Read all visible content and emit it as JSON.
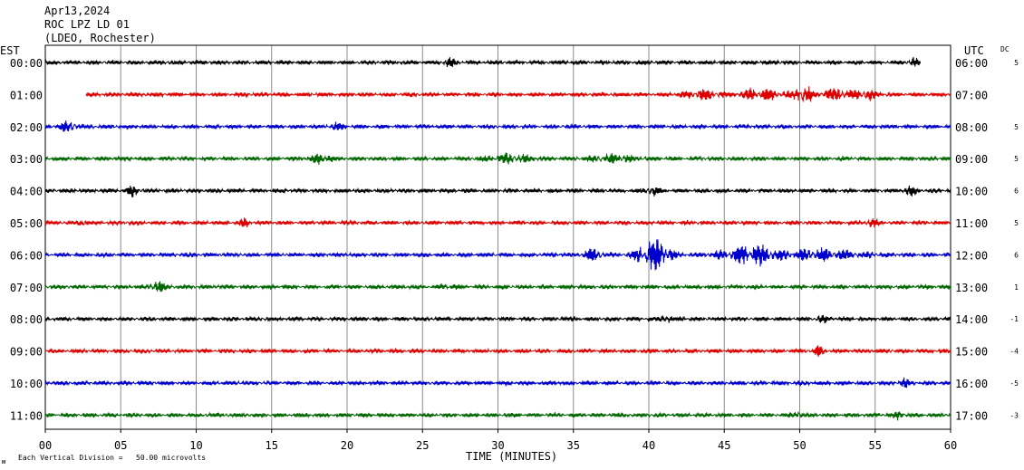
{
  "header": {
    "date": "Apr13,2024",
    "station": "ROC LPZ LD 01",
    "network": "(LDEO, Rochester)"
  },
  "axis_labels": {
    "left": "EST",
    "right": "UTC",
    "dc": "DC",
    "x": "TIME (MINUTES)"
  },
  "footer": {
    "mark": "ᴍ",
    "scale": "Each Vertical Division =   50.00 microvolts"
  },
  "colors": {
    "black": "#000000",
    "red": "#dd0000",
    "blue": "#0000cc",
    "green": "#006600",
    "grid": "#8c8c8c"
  },
  "chart_data": {
    "type": "line",
    "title": "Apr13,2024 ROC LPZ LD 01 (LDEO, Rochester)",
    "xlabel": "TIME (MINUTES)",
    "xlim": [
      0,
      60
    ],
    "x_ticks": [
      "00",
      "05",
      "10",
      "15",
      "20",
      "25",
      "30",
      "35",
      "40",
      "45",
      "50",
      "55",
      "60"
    ],
    "grid": true,
    "traces": [
      {
        "est": "00:00",
        "utc": "06:00",
        "dc": "5",
        "color": "black",
        "start": 0,
        "end": 58,
        "events": [
          [
            26.8,
            0.4,
            1.6
          ],
          [
            57.5,
            0.3,
            1.8
          ]
        ]
      },
      {
        "est": "01:00",
        "utc": "07:00",
        "dc": "",
        "color": "red",
        "start": 2.7,
        "end": 60,
        "events": [
          [
            43.5,
            1.2,
            1.8
          ],
          [
            47.5,
            1.5,
            2.2
          ],
          [
            50.2,
            0.5,
            4.2
          ],
          [
            52.5,
            1.5,
            2.0
          ],
          [
            54.5,
            0.5,
            2.0
          ]
        ]
      },
      {
        "est": "02:00",
        "utc": "08:00",
        "dc": "5",
        "color": "blue",
        "start": 0,
        "end": 60,
        "events": [
          [
            1.5,
            0.6,
            1.8
          ],
          [
            19.3,
            0.4,
            1.3
          ]
        ]
      },
      {
        "est": "03:00",
        "utc": "09:00",
        "dc": "5",
        "color": "green",
        "start": 0,
        "end": 60,
        "events": [
          [
            18.4,
            0.6,
            2.2
          ],
          [
            30.8,
            1.5,
            1.5
          ],
          [
            37.5,
            1.5,
            1.4
          ]
        ]
      },
      {
        "est": "04:00",
        "utc": "10:00",
        "dc": "6",
        "color": "black",
        "start": 0,
        "end": 60,
        "events": [
          [
            5.8,
            0.4,
            1.8
          ],
          [
            40.2,
            0.5,
            1.6
          ],
          [
            57.3,
            0.4,
            1.6
          ]
        ]
      },
      {
        "est": "05:00",
        "utc": "11:00",
        "dc": "5",
        "color": "red",
        "start": 0,
        "end": 60,
        "events": [
          [
            2.5,
            0.3,
            1.6
          ],
          [
            13.2,
            0.3,
            1.5
          ],
          [
            54.8,
            0.4,
            1.5
          ]
        ]
      },
      {
        "est": "06:00",
        "utc": "12:00",
        "dc": "6",
        "color": "blue",
        "start": 0,
        "end": 60,
        "events": [
          [
            36.3,
            0.6,
            2.2
          ],
          [
            40.3,
            1.0,
            7.0
          ],
          [
            46.8,
            1.8,
            3.8
          ],
          [
            51.5,
            2.5,
            2.0
          ]
        ]
      },
      {
        "est": "07:00",
        "utc": "13:00",
        "dc": "1",
        "color": "green",
        "start": 0,
        "end": 60,
        "events": [
          [
            7.4,
            0.5,
            2.2
          ],
          [
            26.8,
            0.4,
            1.8
          ]
        ]
      },
      {
        "est": "08:00",
        "utc": "14:00",
        "dc": "-1",
        "color": "black",
        "start": 0,
        "end": 60,
        "events": [
          [
            41.1,
            0.4,
            1.6
          ],
          [
            51.5,
            0.4,
            1.3
          ]
        ]
      },
      {
        "est": "09:00",
        "utc": "15:00",
        "dc": "-4",
        "color": "red",
        "start": 0,
        "end": 60,
        "events": [
          [
            51.3,
            0.3,
            2.0
          ]
        ]
      },
      {
        "est": "10:00",
        "utc": "16:00",
        "dc": "-5",
        "color": "blue",
        "start": 0,
        "end": 60,
        "events": [
          [
            57.0,
            0.3,
            1.5
          ]
        ]
      },
      {
        "est": "11:00",
        "utc": "17:00",
        "dc": "-3",
        "color": "green",
        "start": 0,
        "end": 60,
        "events": [
          [
            49.8,
            0.3,
            1.8
          ],
          [
            56.6,
            0.3,
            1.6
          ]
        ]
      }
    ]
  }
}
